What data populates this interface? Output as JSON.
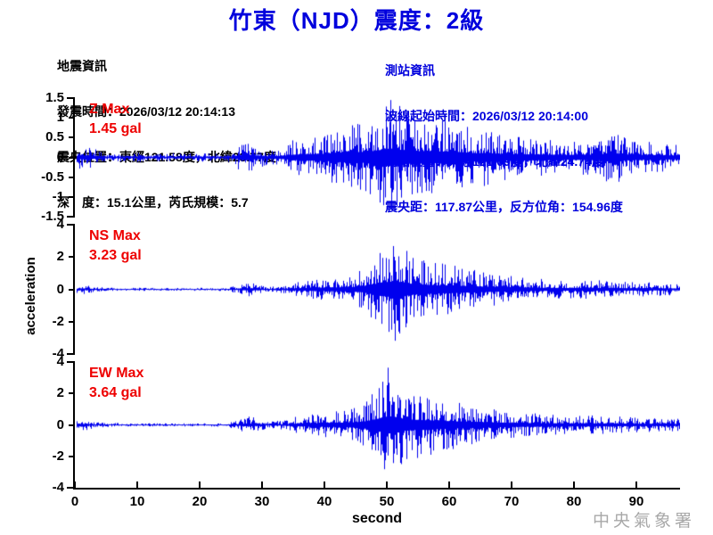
{
  "title": "竹東（NJD）震度：2級",
  "earthquake_info": {
    "heading": "地震資訊",
    "origin_time": "發震時間：2026/03/12 20:14:13",
    "epicenter": "震央位置：東經121.58度，北緯23.77度",
    "depth_magnitude": "深　度：15.1公里，芮氏規模：5.7"
  },
  "station_info": {
    "heading": "測站資訊",
    "wave_start_time": "波線起始時間：2026/03/12 20:14:00",
    "station_location": "測站位置：東經121.09度，北緯24.74度",
    "distance_azimuth": "震央距：117.87公里，反方位角：154.96度"
  },
  "watermark": "中央氣象署",
  "colors": {
    "title_blue": "#0000dd",
    "waveform_blue": "#0000ee",
    "max_label_red": "#ee0000",
    "axis_black": "#000000",
    "watermark_gray": "#a8a8a8"
  },
  "chart_data": {
    "type": "line",
    "subtype": "seismogram-3-component",
    "xlabel": "second",
    "ylabel": "acceleration",
    "x_range": [
      0,
      97
    ],
    "x_ticks": [
      0,
      10,
      20,
      30,
      40,
      50,
      60,
      70,
      80,
      90
    ],
    "grid": false,
    "channels": [
      {
        "name": "Z",
        "max_label": "Z Max",
        "max_value_label": "1.45 gal",
        "max_gal": 1.45,
        "max_time_s": 50.5,
        "max_sign": 1,
        "ylim": [
          -1.5,
          1.5
        ],
        "y_ticks": [
          "1.5",
          "1",
          "0.5",
          "0",
          "-0.5",
          "-1",
          "-1.5"
        ],
        "seed": 101,
        "envelope": [
          [
            0,
            0.06
          ],
          [
            0.5,
            0.3
          ],
          [
            2,
            0.35
          ],
          [
            4,
            0.15
          ],
          [
            6,
            0.1
          ],
          [
            10,
            0.12
          ],
          [
            14,
            0.1
          ],
          [
            18,
            0.12
          ],
          [
            22,
            0.1
          ],
          [
            25,
            0.12
          ],
          [
            26,
            0.3
          ],
          [
            27.5,
            0.5
          ],
          [
            29,
            0.3
          ],
          [
            31,
            0.18
          ],
          [
            33,
            0.25
          ],
          [
            35,
            0.45
          ],
          [
            38,
            0.55
          ],
          [
            40,
            0.6
          ],
          [
            43,
            0.85
          ],
          [
            46,
            0.9
          ],
          [
            48,
            1.1
          ],
          [
            50.5,
            1.45
          ],
          [
            52,
            1.3
          ],
          [
            54,
            1.0
          ],
          [
            56,
            1.05
          ],
          [
            58,
            0.95
          ],
          [
            60,
            1.0
          ],
          [
            62,
            0.85
          ],
          [
            64,
            0.7
          ],
          [
            66,
            0.75
          ],
          [
            68,
            0.6
          ],
          [
            70,
            0.55
          ],
          [
            73,
            0.5
          ],
          [
            76,
            0.45
          ],
          [
            79,
            0.4
          ],
          [
            82,
            0.45
          ],
          [
            84,
            0.5
          ],
          [
            86,
            0.75
          ],
          [
            87.5,
            0.6
          ],
          [
            89,
            0.45
          ],
          [
            92,
            0.4
          ],
          [
            95,
            0.35
          ],
          [
            97,
            0.3
          ]
        ]
      },
      {
        "name": "NS",
        "max_label": "NS Max",
        "max_value_label": "3.23 gal",
        "max_gal": 3.23,
        "max_time_s": 51.3,
        "max_sign": -1,
        "ylim": [
          -4,
          4
        ],
        "y_ticks": [
          "4",
          "2",
          "0",
          "-2",
          "-4"
        ],
        "seed": 202,
        "envelope": [
          [
            0,
            0.08
          ],
          [
            0.5,
            0.35
          ],
          [
            2,
            0.3
          ],
          [
            3,
            0.15
          ],
          [
            6,
            0.1
          ],
          [
            10,
            0.1
          ],
          [
            15,
            0.08
          ],
          [
            20,
            0.1
          ],
          [
            24,
            0.1
          ],
          [
            26,
            0.25
          ],
          [
            27.5,
            0.45
          ],
          [
            29,
            0.35
          ],
          [
            31,
            0.15
          ],
          [
            34,
            0.3
          ],
          [
            36,
            0.5
          ],
          [
            38,
            0.6
          ],
          [
            40,
            0.7
          ],
          [
            42,
            0.8
          ],
          [
            44,
            0.9
          ],
          [
            46,
            1.2
          ],
          [
            48,
            2.2
          ],
          [
            50,
            3.0
          ],
          [
            51.3,
            3.23
          ],
          [
            52.5,
            2.6
          ],
          [
            54,
            2.2
          ],
          [
            56,
            1.9
          ],
          [
            58,
            1.6
          ],
          [
            60,
            1.6
          ],
          [
            62,
            1.4
          ],
          [
            64,
            1.2
          ],
          [
            66,
            1.1
          ],
          [
            68,
            0.95
          ],
          [
            70,
            0.85
          ],
          [
            73,
            0.7
          ],
          [
            76,
            0.6
          ],
          [
            79,
            0.55
          ],
          [
            82,
            0.6
          ],
          [
            85,
            0.55
          ],
          [
            88,
            0.5
          ],
          [
            91,
            0.45
          ],
          [
            94,
            0.4
          ],
          [
            97,
            0.35
          ]
        ]
      },
      {
        "name": "EW",
        "max_label": "EW Max",
        "max_value_label": "3.64 gal",
        "max_gal": 3.64,
        "max_time_s": 50.2,
        "max_sign": 1,
        "ylim": [
          -4,
          4
        ],
        "y_ticks": [
          "4",
          "2",
          "0",
          "-2",
          "-4"
        ],
        "seed": 303,
        "envelope": [
          [
            0,
            0.08
          ],
          [
            0.5,
            0.4
          ],
          [
            2,
            0.35
          ],
          [
            3,
            0.18
          ],
          [
            6,
            0.12
          ],
          [
            10,
            0.1
          ],
          [
            15,
            0.1
          ],
          [
            20,
            0.1
          ],
          [
            24,
            0.12
          ],
          [
            26,
            0.3
          ],
          [
            27.5,
            0.55
          ],
          [
            29,
            0.45
          ],
          [
            31,
            0.2
          ],
          [
            34,
            0.35
          ],
          [
            36,
            0.6
          ],
          [
            38,
            0.7
          ],
          [
            40,
            0.8
          ],
          [
            42,
            0.9
          ],
          [
            44,
            1.0
          ],
          [
            46,
            1.3
          ],
          [
            48,
            2.3
          ],
          [
            50.2,
            3.64
          ],
          [
            51.5,
            3.2
          ],
          [
            53,
            2.4
          ],
          [
            55,
            2.1
          ],
          [
            57,
            1.9
          ],
          [
            59,
            1.7
          ],
          [
            61,
            1.5
          ],
          [
            63,
            1.3
          ],
          [
            65,
            1.2
          ],
          [
            67,
            1.0
          ],
          [
            69,
            0.9
          ],
          [
            72,
            0.8
          ],
          [
            75,
            0.7
          ],
          [
            78,
            0.6
          ],
          [
            81,
            0.65
          ],
          [
            84,
            0.6
          ],
          [
            87,
            0.55
          ],
          [
            90,
            0.5
          ],
          [
            93,
            0.45
          ],
          [
            97,
            0.4
          ]
        ]
      }
    ]
  }
}
